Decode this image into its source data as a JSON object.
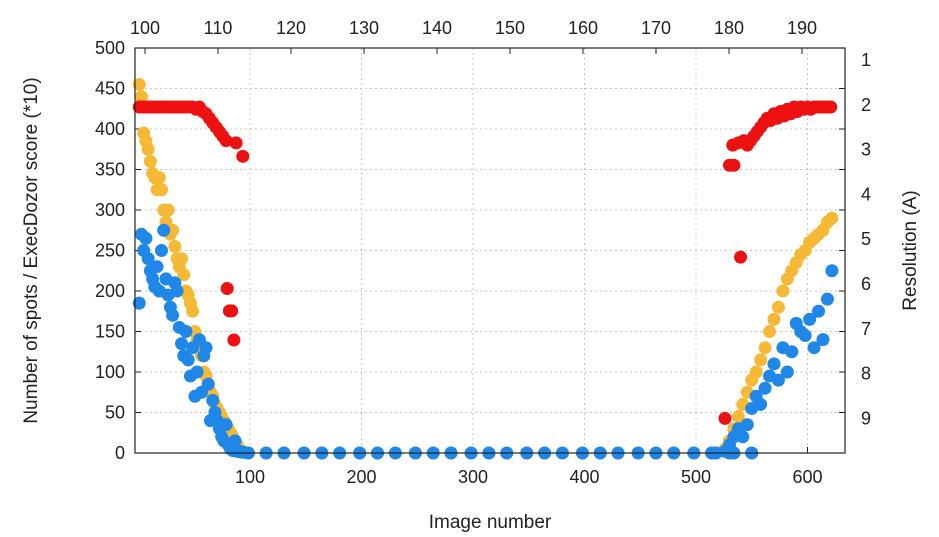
{
  "chart_data": {
    "type": "scatter",
    "title": "",
    "xlabel": "Image number",
    "ylabel": "Number of spots / ExecDozor score (*10)",
    "y2label": "Resolution (A)",
    "xlim": [
      0,
      625
    ],
    "ylim": [
      0,
      500
    ],
    "x_ticks": [
      100,
      200,
      300,
      400,
      500,
      600
    ],
    "y_ticks": [
      0,
      50,
      100,
      150,
      200,
      250,
      300,
      350,
      400,
      450,
      500
    ],
    "x2_ticks": [
      100,
      110,
      120,
      130,
      140,
      150,
      160,
      170,
      180,
      190
    ],
    "x2_range": [
      99,
      193.4
    ],
    "y2_ticks": [
      1,
      2,
      3,
      4,
      5,
      6,
      7,
      8,
      9
    ],
    "y2_range": [
      1,
      9.8
    ],
    "grid": true,
    "legend": "none",
    "colors": {
      "orange": "#f5b935",
      "blue": "#1f87e8",
      "red": "#ee1111"
    },
    "series": [
      {
        "color": "orange",
        "x": [
          2,
          4,
          6,
          8,
          10,
          12,
          14,
          16,
          18,
          20,
          22,
          24,
          26,
          28,
          30,
          32,
          34,
          36,
          38,
          40,
          42,
          44,
          46,
          48,
          50,
          52,
          54,
          56,
          58,
          60,
          62,
          64,
          66,
          68,
          70,
          72,
          74,
          76,
          78,
          80,
          82,
          84,
          86,
          88,
          90,
          92,
          94,
          96,
          100,
          150,
          200,
          250,
          300,
          350,
          400,
          450,
          500,
          520,
          528,
          532,
          536,
          540,
          544,
          548,
          552,
          556,
          560,
          564,
          568,
          572,
          576,
          580,
          584,
          588,
          592,
          596,
          600,
          604,
          608,
          612,
          616,
          620,
          624
        ],
        "y": [
          455,
          440,
          395,
          385,
          375,
          360,
          345,
          340,
          325,
          340,
          325,
          300,
          285,
          300,
          270,
          275,
          255,
          240,
          230,
          240,
          220,
          200,
          195,
          185,
          175,
          150,
          140,
          130,
          120,
          100,
          95,
          85,
          75,
          70,
          60,
          55,
          50,
          45,
          40,
          35,
          30,
          25,
          20,
          15,
          10,
          5,
          2,
          1,
          0,
          0,
          0,
          0,
          0,
          0,
          0,
          0,
          0,
          0,
          5,
          15,
          30,
          45,
          60,
          75,
          90,
          100,
          115,
          130,
          150,
          165,
          180,
          200,
          215,
          225,
          235,
          245,
          250,
          260,
          265,
          270,
          275,
          285,
          290
        ]
      },
      {
        "color": "blue",
        "x": [
          2,
          4,
          6,
          8,
          10,
          12,
          14,
          16,
          18,
          20,
          22,
          24,
          26,
          28,
          30,
          32,
          34,
          36,
          38,
          40,
          42,
          44,
          46,
          48,
          50,
          52,
          54,
          56,
          58,
          60,
          62,
          64,
          66,
          68,
          70,
          72,
          74,
          76,
          78,
          80,
          82,
          84,
          86,
          88,
          90,
          92,
          94,
          96,
          100,
          150,
          200,
          250,
          300,
          350,
          400,
          450,
          500,
          520,
          528,
          532,
          536,
          540,
          544,
          548,
          552,
          556,
          560,
          564,
          568,
          572,
          576,
          580,
          584,
          588,
          592,
          596,
          600,
          604,
          608,
          612,
          616,
          620,
          624
        ],
        "y": [
          185,
          270,
          250,
          265,
          240,
          225,
          215,
          205,
          230,
          200,
          250,
          275,
          215,
          195,
          180,
          170,
          210,
          200,
          155,
          135,
          120,
          150,
          115,
          95,
          130,
          70,
          100,
          140,
          75,
          120,
          130,
          85,
          40,
          65,
          50,
          40,
          30,
          20,
          15,
          35,
          10,
          5,
          3,
          15,
          2,
          2,
          1,
          1,
          0,
          0,
          0,
          0,
          0,
          0,
          0,
          0,
          0,
          0,
          2,
          10,
          20,
          30,
          20,
          35,
          55,
          70,
          60,
          80,
          95,
          110,
          90,
          130,
          100,
          125,
          160,
          150,
          145,
          165,
          130,
          175,
          140,
          190,
          225
        ]
      },
      {
        "color": "red",
        "x": [
          2,
          5,
          8,
          11,
          14,
          17,
          20,
          23,
          26,
          29,
          32,
          35,
          38,
          41,
          44,
          47,
          50,
          53,
          56,
          59,
          62,
          65,
          68,
          71,
          74,
          77,
          80,
          81,
          83,
          85,
          87,
          89,
          95,
          528,
          532,
          535,
          540,
          545,
          548,
          551,
          554,
          557,
          560,
          563,
          566,
          569,
          572,
          575,
          578,
          581,
          584,
          587,
          590,
          593,
          596,
          599,
          602,
          605,
          608,
          611,
          614,
          617,
          620,
          623
        ],
        "y": [
          2.05,
          2.05,
          2.05,
          2.05,
          2.05,
          2.05,
          2.05,
          2.05,
          2.05,
          2.05,
          2.05,
          2.05,
          2.05,
          2.05,
          2.05,
          2.05,
          2.05,
          2.1,
          2.05,
          2.15,
          2.2,
          2.3,
          2.4,
          2.5,
          2.6,
          2.7,
          2.8,
          6.1,
          6.6,
          6.6,
          7.25,
          2.85,
          3.15,
          9.0,
          3.35,
          2.9,
          2.85,
          2.8,
          2.9,
          2.8,
          2.7,
          2.6,
          2.5,
          2.4,
          2.3,
          2.35,
          2.2,
          2.3,
          2.15,
          2.25,
          2.1,
          2.2,
          2.05,
          2.15,
          2.05,
          2.1,
          2.05,
          2.1,
          2.05,
          2.05,
          2.05,
          2.05,
          2.05,
          2.05
        ]
      }
    ],
    "extra_red_points": {
      "x": [
        536,
        542
      ],
      "y": [
        3.35,
        5.4
      ]
    }
  }
}
